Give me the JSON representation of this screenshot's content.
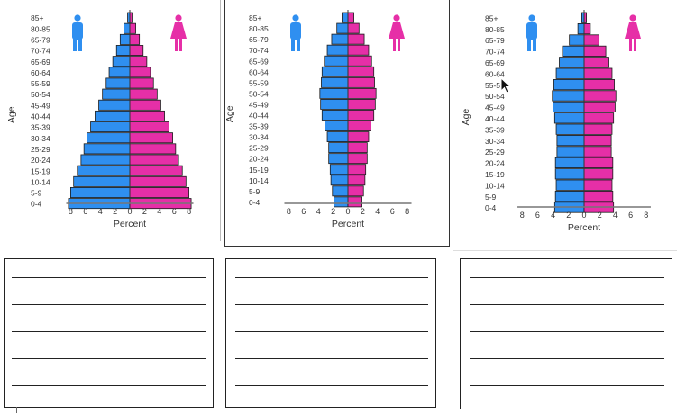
{
  "colors": {
    "male": "#2f8ff0",
    "female": "#e62fa7",
    "bar_outline": "#1a1a1a",
    "text": "#333333",
    "axis": "#333333"
  },
  "icons": {
    "male": "male-figure-icon",
    "female": "female-figure-icon",
    "cursor": "mouse-pointer-icon"
  },
  "age_groups": [
    "85+",
    "80-85",
    "65-79",
    "70-74",
    "65-69",
    "60-64",
    "55-59",
    "50-54",
    "45-49",
    "40-44",
    "35-39",
    "30-34",
    "25-29",
    "20-24",
    "15-19",
    "10-14",
    "5-9",
    "0-4"
  ],
  "chart_data": [
    {
      "type": "bar",
      "orientation": "horizontal-population-pyramid",
      "ylabel": "Age",
      "xlabel": "Percent",
      "x_ticks": [
        "8",
        "6",
        "4",
        "2",
        "0",
        "2",
        "4",
        "6",
        "8"
      ],
      "xlim": [
        -8,
        8
      ],
      "series": [
        {
          "values": [
            0.3,
            0.8,
            1.3,
            1.8,
            2.3,
            2.8,
            3.2,
            3.7,
            4.2,
            4.7,
            5.3,
            5.8,
            6.2,
            6.6,
            7.1,
            7.6,
            8.0,
            8.3
          ]
        },
        {
          "values": [
            0.3,
            0.8,
            1.3,
            1.8,
            2.3,
            2.8,
            3.2,
            3.7,
            4.2,
            4.7,
            5.3,
            5.8,
            6.2,
            6.6,
            7.1,
            7.6,
            8.0,
            8.3
          ]
        }
      ]
    },
    {
      "type": "bar",
      "orientation": "horizontal-population-pyramid",
      "ylabel": "Age",
      "xlabel": "Percent",
      "x_ticks": [
        "8",
        "6",
        "4",
        "2",
        "0",
        "2",
        "4",
        "6",
        "8"
      ],
      "xlim": [
        -8,
        8
      ],
      "series": [
        {
          "values": [
            0.8,
            1.5,
            2.2,
            2.8,
            3.2,
            3.5,
            3.6,
            3.8,
            3.7,
            3.5,
            3.1,
            2.8,
            2.6,
            2.6,
            2.4,
            2.3,
            2.1,
            1.9
          ]
        },
        {
          "values": [
            0.8,
            1.5,
            2.2,
            2.8,
            3.2,
            3.5,
            3.6,
            3.8,
            3.7,
            3.5,
            3.1,
            2.8,
            2.6,
            2.6,
            2.4,
            2.3,
            2.1,
            1.9
          ]
        }
      ]
    },
    {
      "type": "bar",
      "orientation": "horizontal-population-pyramid",
      "ylabel": "Age",
      "xlabel": "Percent",
      "x_ticks": [
        "8",
        "6",
        "4",
        "2",
        "0",
        "2",
        "4",
        "6",
        "8"
      ],
      "xlim": [
        -8,
        8
      ],
      "series": [
        {
          "values": [
            0.3,
            0.8,
            1.9,
            2.8,
            3.2,
            3.6,
            3.9,
            4.1,
            4.0,
            3.8,
            3.6,
            3.5,
            3.5,
            3.7,
            3.7,
            3.6,
            3.7,
            3.8
          ]
        },
        {
          "values": [
            0.3,
            0.8,
            1.9,
            2.8,
            3.2,
            3.6,
            3.9,
            4.1,
            4.0,
            3.8,
            3.6,
            3.5,
            3.5,
            3.7,
            3.7,
            3.6,
            3.7,
            3.8
          ]
        }
      ]
    }
  ]
}
